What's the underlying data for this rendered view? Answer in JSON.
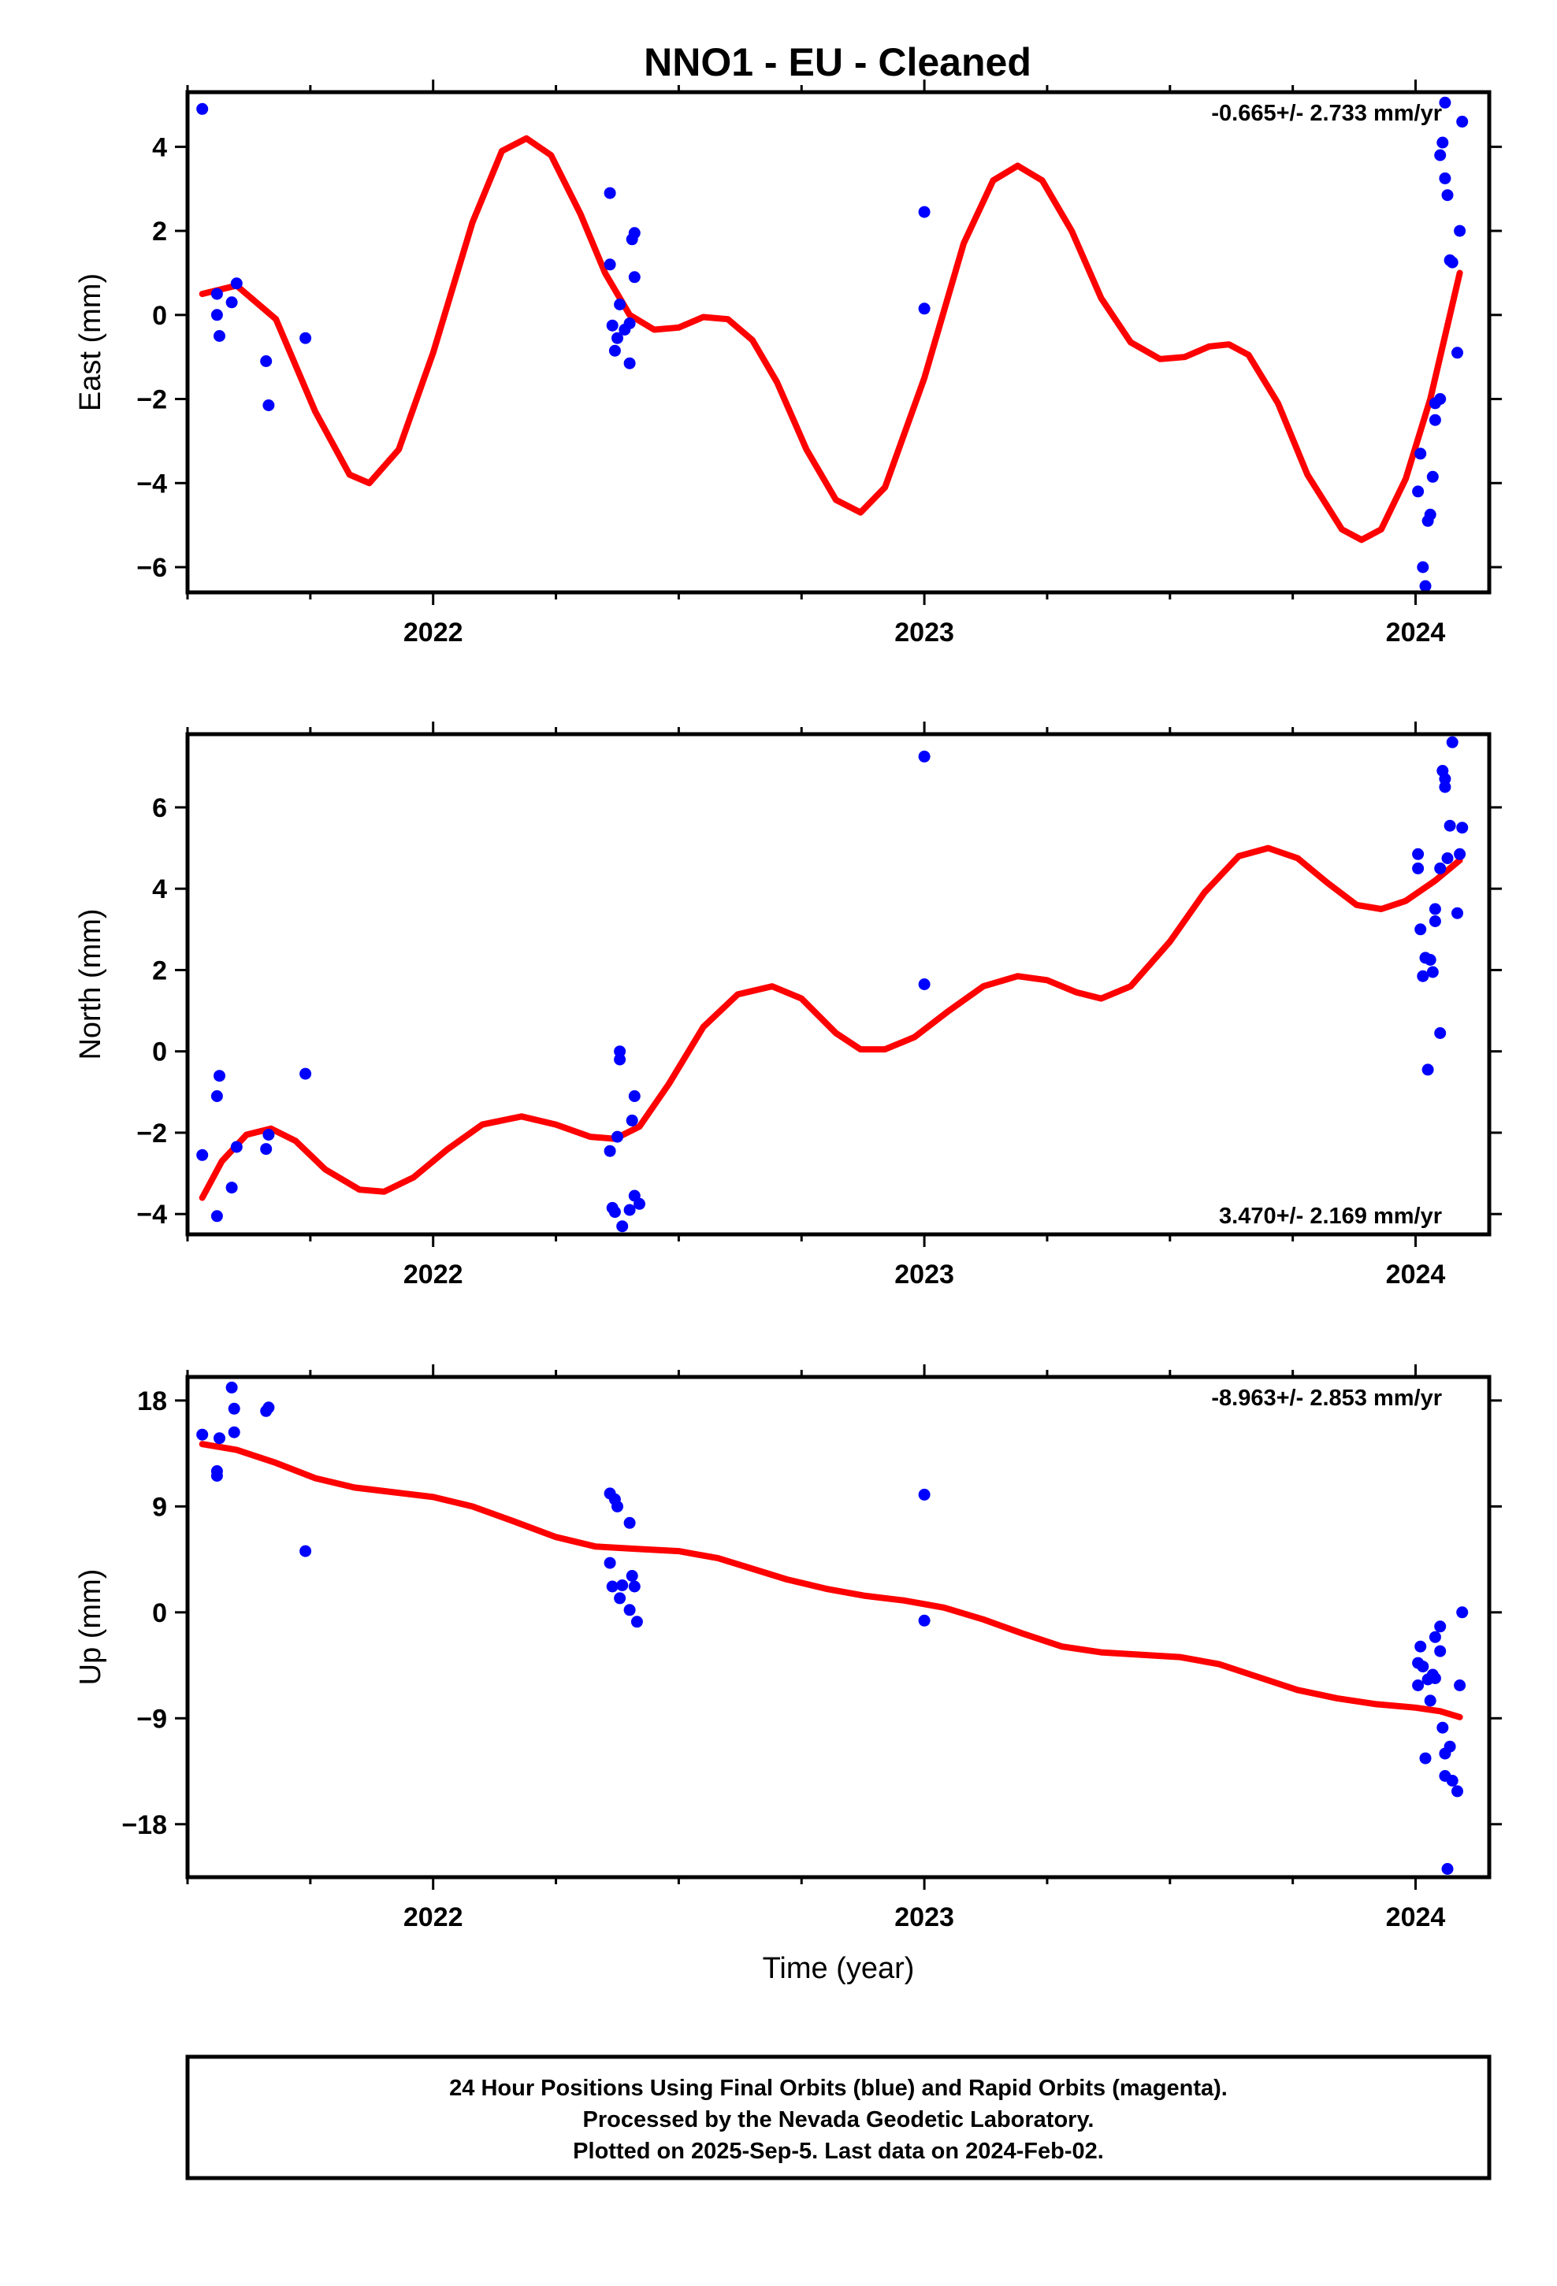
{
  "title": "NNO1  - EU - Cleaned",
  "colors": {
    "final": "#0000ff",
    "model": "#ff0000",
    "frame": "#000000"
  },
  "caption": [
    "24 Hour Positions Using Final Orbits (blue) and Rapid Orbits (magenta).",
    "Processed by the Nevada Geodetic Laboratory.",
    "Plotted on 2025-Sep-5. Last data on 2024-Feb-02."
  ],
  "chart_data": [
    {
      "type": "scatter",
      "ylabel": "East (mm)",
      "xlabel": "",
      "rate": "-0.665+/- 2.733 mm/yr",
      "rate_position": "top-right",
      "xlim": [
        2021.5,
        2024.15
      ],
      "ylim": [
        -6.6,
        5.3
      ],
      "xticks": [
        2022,
        2023,
        2024
      ],
      "xtick_labels": [
        "2022",
        "2023",
        "2024"
      ],
      "yticks": [
        -6,
        -4,
        -2,
        0,
        2,
        4
      ],
      "ytick_labels": [
        "−6",
        "−4",
        "−2",
        "0",
        "2",
        "4"
      ],
      "points": [
        [
          2021.53,
          4.9
        ],
        [
          2021.56,
          0.5
        ],
        [
          2021.56,
          0.0
        ],
        [
          2021.565,
          -0.5
        ],
        [
          2021.59,
          0.3
        ],
        [
          2021.6,
          0.75
        ],
        [
          2021.66,
          -1.1
        ],
        [
          2021.665,
          -2.15
        ],
        [
          2021.74,
          -0.55
        ],
        [
          2022.36,
          2.9
        ],
        [
          2022.36,
          1.2
        ],
        [
          2022.365,
          -0.25
        ],
        [
          2022.37,
          -0.85
        ],
        [
          2022.375,
          -0.55
        ],
        [
          2022.38,
          0.25
        ],
        [
          2022.39,
          -0.35
        ],
        [
          2022.4,
          -0.2
        ],
        [
          2022.4,
          -1.15
        ],
        [
          2022.405,
          1.8
        ],
        [
          2022.41,
          1.95
        ],
        [
          2022.41,
          0.9
        ],
        [
          2023.0,
          2.45
        ],
        [
          2023.0,
          0.15
        ],
        [
          2024.005,
          -4.2
        ],
        [
          2024.01,
          -3.3
        ],
        [
          2024.015,
          -6.0
        ],
        [
          2024.02,
          -6.45
        ],
        [
          2024.025,
          -4.9
        ],
        [
          2024.03,
          -4.75
        ],
        [
          2024.035,
          -3.85
        ],
        [
          2024.04,
          -2.5
        ],
        [
          2024.04,
          -2.1
        ],
        [
          2024.05,
          -2.0
        ],
        [
          2024.05,
          3.8
        ],
        [
          2024.055,
          4.1
        ],
        [
          2024.06,
          3.25
        ],
        [
          2024.06,
          5.05
        ],
        [
          2024.065,
          2.85
        ],
        [
          2024.07,
          1.3
        ],
        [
          2024.075,
          1.25
        ],
        [
          2024.085,
          -0.9
        ],
        [
          2024.09,
          2.0
        ],
        [
          2024.095,
          4.6
        ]
      ],
      "model": [
        [
          2021.53,
          0.5
        ],
        [
          2021.6,
          0.7
        ],
        [
          2021.68,
          -0.1
        ],
        [
          2021.76,
          -2.3
        ],
        [
          2021.83,
          -3.8
        ],
        [
          2021.87,
          -4.0
        ],
        [
          2021.93,
          -3.2
        ],
        [
          2022.0,
          -0.9
        ],
        [
          2022.08,
          2.2
        ],
        [
          2022.14,
          3.9
        ],
        [
          2022.19,
          4.2
        ],
        [
          2022.24,
          3.8
        ],
        [
          2022.3,
          2.4
        ],
        [
          2022.35,
          1.0
        ],
        [
          2022.4,
          0.0
        ],
        [
          2022.45,
          -0.35
        ],
        [
          2022.5,
          -0.3
        ],
        [
          2022.55,
          -0.05
        ],
        [
          2022.6,
          -0.1
        ],
        [
          2022.65,
          -0.6
        ],
        [
          2022.7,
          -1.6
        ],
        [
          2022.76,
          -3.2
        ],
        [
          2022.82,
          -4.4
        ],
        [
          2022.87,
          -4.7
        ],
        [
          2022.92,
          -4.1
        ],
        [
          2023.0,
          -1.5
        ],
        [
          2023.08,
          1.7
        ],
        [
          2023.14,
          3.2
        ],
        [
          2023.19,
          3.55
        ],
        [
          2023.24,
          3.2
        ],
        [
          2023.3,
          2.0
        ],
        [
          2023.36,
          0.4
        ],
        [
          2023.42,
          -0.65
        ],
        [
          2023.48,
          -1.05
        ],
        [
          2023.53,
          -1.0
        ],
        [
          2023.58,
          -0.75
        ],
        [
          2023.62,
          -0.7
        ],
        [
          2023.66,
          -0.95
        ],
        [
          2023.72,
          -2.1
        ],
        [
          2023.78,
          -3.8
        ],
        [
          2023.85,
          -5.1
        ],
        [
          2023.89,
          -5.35
        ],
        [
          2023.93,
          -5.1
        ],
        [
          2023.98,
          -3.9
        ],
        [
          2024.03,
          -2.0
        ],
        [
          2024.09,
          1.0
        ]
      ]
    },
    {
      "type": "scatter",
      "ylabel": "North (mm)",
      "xlabel": "",
      "rate": "3.470+/- 2.169 mm/yr",
      "rate_position": "bottom-right",
      "xlim": [
        2021.5,
        2024.15
      ],
      "ylim": [
        -4.5,
        7.8
      ],
      "xticks": [
        2022,
        2023,
        2024
      ],
      "xtick_labels": [
        "2022",
        "2023",
        "2024"
      ],
      "yticks": [
        -4,
        -2,
        0,
        2,
        4,
        6
      ],
      "ytick_labels": [
        "−4",
        "−2",
        "0",
        "2",
        "4",
        "6"
      ],
      "points": [
        [
          2021.53,
          -2.55
        ],
        [
          2021.56,
          -4.05
        ],
        [
          2021.56,
          -1.1
        ],
        [
          2021.565,
          -0.6
        ],
        [
          2021.59,
          -3.35
        ],
        [
          2021.6,
          -2.35
        ],
        [
          2021.66,
          -2.4
        ],
        [
          2021.665,
          -2.05
        ],
        [
          2021.74,
          -0.55
        ],
        [
          2022.36,
          -2.45
        ],
        [
          2022.365,
          -3.85
        ],
        [
          2022.37,
          -3.95
        ],
        [
          2022.375,
          -2.1
        ],
        [
          2022.38,
          -0.2
        ],
        [
          2022.38,
          0.0
        ],
        [
          2022.385,
          -4.3
        ],
        [
          2022.4,
          -3.9
        ],
        [
          2022.405,
          -1.7
        ],
        [
          2022.41,
          -3.55
        ],
        [
          2022.41,
          -1.1
        ],
        [
          2022.42,
          -3.75
        ],
        [
          2023.0,
          7.25
        ],
        [
          2023.0,
          1.65
        ],
        [
          2024.005,
          4.85
        ],
        [
          2024.005,
          4.5
        ],
        [
          2024.01,
          3.0
        ],
        [
          2024.015,
          1.85
        ],
        [
          2024.02,
          2.3
        ],
        [
          2024.025,
          -0.45
        ],
        [
          2024.03,
          2.25
        ],
        [
          2024.035,
          1.95
        ],
        [
          2024.04,
          3.5
        ],
        [
          2024.04,
          3.2
        ],
        [
          2024.05,
          0.45
        ],
        [
          2024.05,
          4.5
        ],
        [
          2024.055,
          6.9
        ],
        [
          2024.06,
          6.7
        ],
        [
          2024.06,
          6.5
        ],
        [
          2024.065,
          4.75
        ],
        [
          2024.07,
          5.55
        ],
        [
          2024.075,
          7.6
        ],
        [
          2024.085,
          3.4
        ],
        [
          2024.09,
          4.85
        ],
        [
          2024.095,
          5.5
        ]
      ],
      "model": [
        [
          2021.53,
          -3.6
        ],
        [
          2021.57,
          -2.7
        ],
        [
          2021.62,
          -2.05
        ],
        [
          2021.67,
          -1.9
        ],
        [
          2021.72,
          -2.2
        ],
        [
          2021.78,
          -2.9
        ],
        [
          2021.85,
          -3.4
        ],
        [
          2021.9,
          -3.45
        ],
        [
          2021.96,
          -3.1
        ],
        [
          2022.03,
          -2.4
        ],
        [
          2022.1,
          -1.8
        ],
        [
          2022.18,
          -1.6
        ],
        [
          2022.25,
          -1.8
        ],
        [
          2022.32,
          -2.1
        ],
        [
          2022.37,
          -2.15
        ],
        [
          2022.42,
          -1.85
        ],
        [
          2022.48,
          -0.8
        ],
        [
          2022.55,
          0.6
        ],
        [
          2022.62,
          1.4
        ],
        [
          2022.69,
          1.6
        ],
        [
          2022.75,
          1.3
        ],
        [
          2022.82,
          0.45
        ],
        [
          2022.87,
          0.05
        ],
        [
          2022.92,
          0.05
        ],
        [
          2022.98,
          0.35
        ],
        [
          2023.05,
          1.0
        ],
        [
          2023.12,
          1.6
        ],
        [
          2023.19,
          1.85
        ],
        [
          2023.25,
          1.75
        ],
        [
          2023.31,
          1.45
        ],
        [
          2023.36,
          1.3
        ],
        [
          2023.42,
          1.6
        ],
        [
          2023.5,
          2.7
        ],
        [
          2023.57,
          3.9
        ],
        [
          2023.64,
          4.8
        ],
        [
          2023.7,
          5.0
        ],
        [
          2023.76,
          4.75
        ],
        [
          2023.82,
          4.15
        ],
        [
          2023.88,
          3.6
        ],
        [
          2023.93,
          3.5
        ],
        [
          2023.98,
          3.7
        ],
        [
          2024.04,
          4.2
        ],
        [
          2024.09,
          4.7
        ]
      ]
    },
    {
      "type": "scatter",
      "ylabel": "Up (mm)",
      "xlabel": "Time (year)",
      "rate": "-8.963+/- 2.853 mm/yr",
      "rate_position": "top-right",
      "xlim": [
        2021.5,
        2024.15
      ],
      "ylim": [
        -22.5,
        20
      ],
      "xticks": [
        2022,
        2023,
        2024
      ],
      "xtick_labels": [
        "2022",
        "2023",
        "2024"
      ],
      "yticks": [
        -18,
        -9,
        0,
        9,
        18
      ],
      "ytick_labels": [
        "−18",
        "−9",
        "0",
        "9",
        "18"
      ],
      "points": [
        [
          2021.53,
          15.1
        ],
        [
          2021.56,
          12.0
        ],
        [
          2021.56,
          11.6
        ],
        [
          2021.565,
          14.8
        ],
        [
          2021.59,
          19.1
        ],
        [
          2021.595,
          15.3
        ],
        [
          2021.595,
          17.3
        ],
        [
          2021.66,
          17.1
        ],
        [
          2021.665,
          17.4
        ],
        [
          2021.74,
          5.2
        ],
        [
          2022.36,
          10.1
        ],
        [
          2022.36,
          4.2
        ],
        [
          2022.365,
          2.2
        ],
        [
          2022.37,
          9.6
        ],
        [
          2022.375,
          9.0
        ],
        [
          2022.38,
          1.2
        ],
        [
          2022.385,
          2.3
        ],
        [
          2022.4,
          0.2
        ],
        [
          2022.4,
          7.6
        ],
        [
          2022.405,
          3.1
        ],
        [
          2022.41,
          2.2
        ],
        [
          2022.415,
          -0.8
        ],
        [
          2023.0,
          10.0
        ],
        [
          2023.0,
          -0.7
        ],
        [
          2024.005,
          -4.3
        ],
        [
          2024.005,
          -6.2
        ],
        [
          2024.01,
          -2.9
        ],
        [
          2024.015,
          -4.6
        ],
        [
          2024.02,
          -12.4
        ],
        [
          2024.025,
          -5.7
        ],
        [
          2024.03,
          -7.5
        ],
        [
          2024.035,
          -5.3
        ],
        [
          2024.04,
          -2.1
        ],
        [
          2024.04,
          -5.6
        ],
        [
          2024.05,
          -1.2
        ],
        [
          2024.05,
          -3.3
        ],
        [
          2024.055,
          -9.8
        ],
        [
          2024.06,
          -12.0
        ],
        [
          2024.06,
          -13.9
        ],
        [
          2024.065,
          -21.8
        ],
        [
          2024.07,
          -11.4
        ],
        [
          2024.075,
          -14.3
        ],
        [
          2024.085,
          -15.2
        ],
        [
          2024.09,
          -6.2
        ],
        [
          2024.095,
          0.0
        ]
      ],
      "model": [
        [
          2021.53,
          14.3
        ],
        [
          2021.6,
          13.8
        ],
        [
          2021.68,
          12.7
        ],
        [
          2021.76,
          11.4
        ],
        [
          2021.84,
          10.6
        ],
        [
          2021.92,
          10.2
        ],
        [
          2022.0,
          9.8
        ],
        [
          2022.08,
          9.0
        ],
        [
          2022.16,
          7.8
        ],
        [
          2022.25,
          6.4
        ],
        [
          2022.33,
          5.6
        ],
        [
          2022.41,
          5.4
        ],
        [
          2022.5,
          5.2
        ],
        [
          2022.58,
          4.6
        ],
        [
          2022.65,
          3.7
        ],
        [
          2022.72,
          2.8
        ],
        [
          2022.8,
          2.0
        ],
        [
          2022.88,
          1.4
        ],
        [
          2022.96,
          1.0
        ],
        [
          2023.04,
          0.4
        ],
        [
          2023.12,
          -0.6
        ],
        [
          2023.2,
          -1.8
        ],
        [
          2023.28,
          -2.9
        ],
        [
          2023.36,
          -3.4
        ],
        [
          2023.44,
          -3.6
        ],
        [
          2023.52,
          -3.8
        ],
        [
          2023.6,
          -4.4
        ],
        [
          2023.68,
          -5.5
        ],
        [
          2023.76,
          -6.6
        ],
        [
          2023.84,
          -7.3
        ],
        [
          2023.92,
          -7.8
        ],
        [
          2024.0,
          -8.1
        ],
        [
          2024.05,
          -8.4
        ],
        [
          2024.09,
          -8.9
        ]
      ]
    }
  ]
}
